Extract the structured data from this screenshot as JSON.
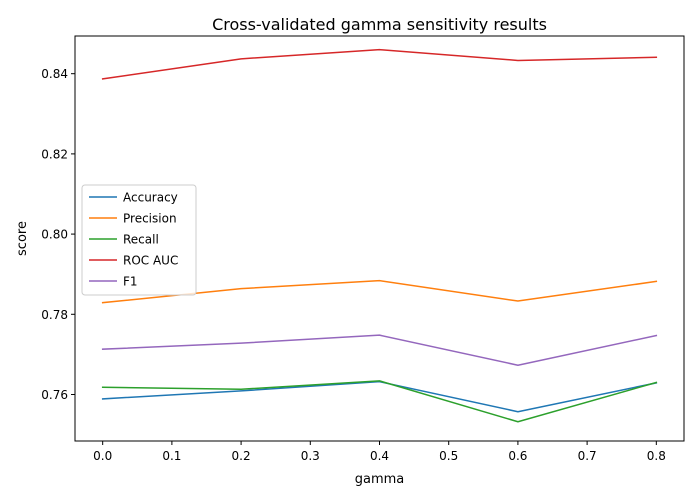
{
  "chart_data": {
    "type": "line",
    "title": "Cross-validated gamma sensitivity results",
    "xlabel": "gamma",
    "ylabel": "score",
    "x": [
      0.0,
      0.2,
      0.4,
      0.6,
      0.8
    ],
    "xlim": [
      -0.04,
      0.84
    ],
    "ylim": [
      0.7484,
      0.8494
    ],
    "xticks": [
      0.0,
      0.1,
      0.2,
      0.3,
      0.4,
      0.5,
      0.6,
      0.7,
      0.8
    ],
    "xtick_labels": [
      "0.0",
      "0.1",
      "0.2",
      "0.3",
      "0.4",
      "0.5",
      "0.6",
      "0.7",
      "0.8"
    ],
    "yticks": [
      0.76,
      0.78,
      0.8,
      0.82,
      0.84
    ],
    "ytick_labels": [
      "0.76",
      "0.78",
      "0.80",
      "0.82",
      "0.84"
    ],
    "grid": false,
    "legend_position": "center-left",
    "series": [
      {
        "name": "Accuracy",
        "color": "#1f77b4",
        "values": [
          0.7589,
          0.7609,
          0.7632,
          0.7557,
          0.7629
        ]
      },
      {
        "name": "Precision",
        "color": "#ff7f0e",
        "values": [
          0.7829,
          0.7864,
          0.7884,
          0.7833,
          0.7882
        ]
      },
      {
        "name": "Recall",
        "color": "#2ca02c",
        "values": [
          0.7618,
          0.7613,
          0.7634,
          0.7532,
          0.763
        ]
      },
      {
        "name": "ROC AUC",
        "color": "#d62728",
        "values": [
          0.8387,
          0.8437,
          0.846,
          0.8433,
          0.8441
        ]
      },
      {
        "name": "F1",
        "color": "#9467bd",
        "values": [
          0.7713,
          0.7728,
          0.7748,
          0.7673,
          0.7747
        ]
      }
    ]
  }
}
